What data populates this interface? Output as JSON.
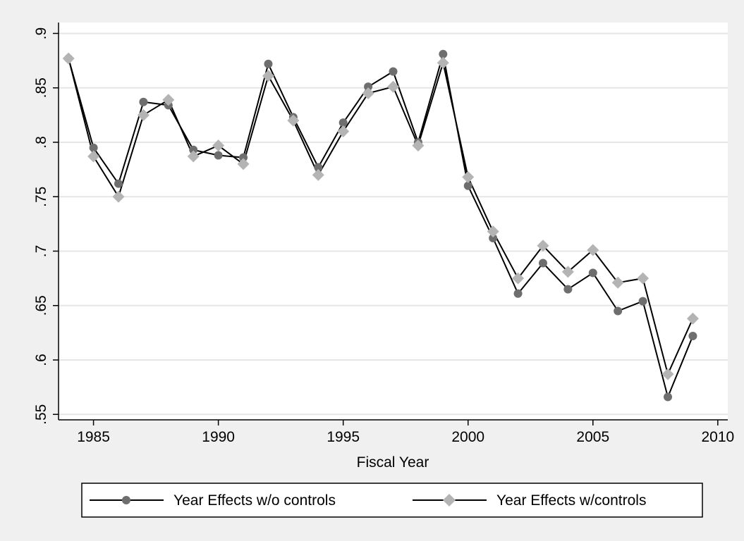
{
  "chart_data": {
    "type": "line",
    "xlabel": "Fiscal Year",
    "ylabel": "",
    "xlim": [
      1983.6,
      2010.4
    ],
    "ylim": [
      0.545,
      0.91
    ],
    "x_ticks": [
      1985,
      1990,
      1995,
      2000,
      2005,
      2010
    ],
    "x_tick_labels": [
      "1985",
      "1990",
      "1995",
      "2000",
      "2005",
      "2010"
    ],
    "y_ticks": [
      0.55,
      0.6,
      0.65,
      0.7,
      0.75,
      0.8,
      0.85,
      0.9
    ],
    "y_tick_labels": [
      ".55",
      ".6",
      ".65",
      ".7",
      ".75",
      ".8",
      ".85",
      ".9"
    ],
    "grid": true,
    "legend_position": "bottom",
    "x": [
      1984,
      1985,
      1986,
      1987,
      1988,
      1989,
      1990,
      1991,
      1992,
      1993,
      1994,
      1995,
      1996,
      1997,
      1998,
      1999,
      2000,
      2001,
      2002,
      2003,
      2004,
      2005,
      2006,
      2007,
      2008,
      2009
    ],
    "series": [
      {
        "name": "Year Effects w/o controls",
        "marker": "circle",
        "color": "#6e6e6e",
        "values": [
          0.877,
          0.795,
          0.762,
          0.837,
          0.834,
          0.793,
          0.788,
          0.786,
          0.872,
          0.823,
          0.777,
          0.818,
          0.851,
          0.865,
          0.8,
          0.881,
          0.76,
          0.712,
          0.661,
          0.689,
          0.665,
          0.68,
          0.645,
          0.654,
          0.566,
          0.622
        ]
      },
      {
        "name": "Year Effects w/controls",
        "marker": "diamond",
        "color": "#b4b4b4",
        "values": [
          0.877,
          0.787,
          0.75,
          0.825,
          0.839,
          0.787,
          0.797,
          0.78,
          0.861,
          0.82,
          0.77,
          0.81,
          0.845,
          0.851,
          0.797,
          0.873,
          0.768,
          0.718,
          0.675,
          0.705,
          0.681,
          0.701,
          0.671,
          0.675,
          0.587,
          0.638
        ]
      }
    ]
  }
}
